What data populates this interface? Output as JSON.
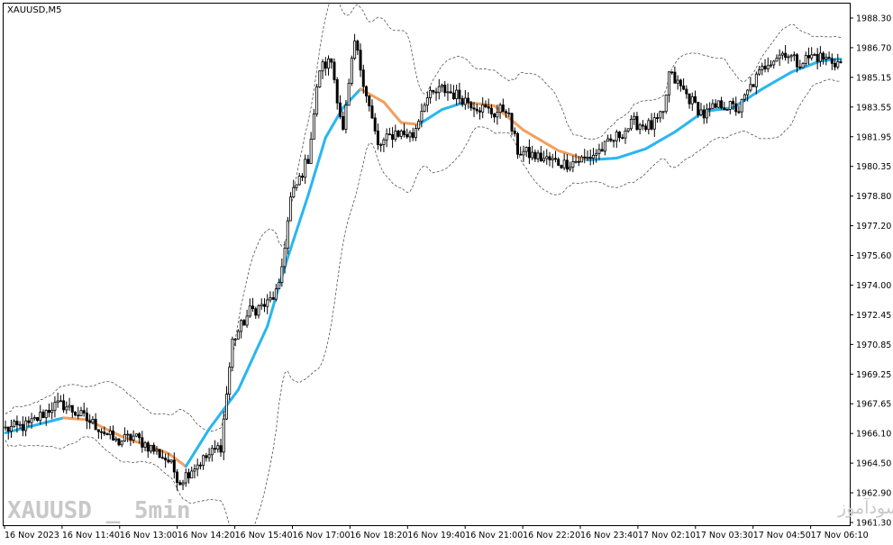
{
  "chart_data": {
    "type": "candlestick",
    "symbol": "XAUUSD,M5",
    "y_ticks": [
      "1988.30",
      "1986.70",
      "1985.15",
      "1983.55",
      "1981.95",
      "1980.35",
      "1978.80",
      "1977.20",
      "1975.60",
      "1974.00",
      "1972.45",
      "1970.85",
      "1969.25",
      "1967.65",
      "1966.10",
      "1964.50",
      "1962.90",
      "1961.30"
    ],
    "x_ticks": [
      "16 Nov 2023",
      "16 Nov 11:40",
      "16 Nov 13:00",
      "16 Nov 14:20",
      "16 Nov 15:40",
      "16 Nov 17:00",
      "16 Nov 18:20",
      "16 Nov 19:40",
      "16 Nov 21:00",
      "16 Nov 22:20",
      "16 Nov 23:40",
      "17 Nov 02:10",
      "17 Nov 03:30",
      "17 Nov 04:50",
      "17 Nov 06:10"
    ],
    "ylim": [
      1961.3,
      1988.3
    ],
    "ma_colors": {
      "up": "#29b6f0",
      "down": "#f0a060"
    },
    "band_color": "#555555",
    "candle_color": "#000000",
    "anchors": [
      [
        0,
        1966.3
      ],
      [
        8,
        1966.5
      ],
      [
        16,
        1967.5
      ],
      [
        20,
        1967.6
      ],
      [
        26,
        1967.0
      ],
      [
        32,
        1966.4
      ],
      [
        38,
        1965.6
      ],
      [
        44,
        1965.9
      ],
      [
        50,
        1965.3
      ],
      [
        56,
        1964.6
      ],
      [
        60,
        1963.5
      ],
      [
        64,
        1964.2
      ],
      [
        70,
        1964.9
      ],
      [
        74,
        1965.4
      ],
      [
        78,
        1971.0
      ],
      [
        84,
        1972.6
      ],
      [
        90,
        1973.0
      ],
      [
        94,
        1973.8
      ],
      [
        98,
        1978.6
      ],
      [
        104,
        1980.8
      ],
      [
        108,
        1985.6
      ],
      [
        112,
        1986.0
      ],
      [
        116,
        1982.2
      ],
      [
        120,
        1987.0
      ],
      [
        124,
        1984.3
      ],
      [
        128,
        1981.4
      ],
      [
        134,
        1982.2
      ],
      [
        140,
        1982.0
      ],
      [
        144,
        1983.9
      ],
      [
        150,
        1984.5
      ],
      [
        156,
        1984.1
      ],
      [
        162,
        1983.6
      ],
      [
        168,
        1983.2
      ],
      [
        172,
        1983.5
      ],
      [
        176,
        1981.2
      ],
      [
        184,
        1980.8
      ],
      [
        192,
        1980.5
      ],
      [
        200,
        1980.8
      ],
      [
        206,
        1981.4
      ],
      [
        212,
        1982.2
      ],
      [
        216,
        1982.7
      ],
      [
        222,
        1982.5
      ],
      [
        226,
        1983.1
      ],
      [
        228,
        1985.3
      ],
      [
        232,
        1984.6
      ],
      [
        236,
        1983.8
      ],
      [
        240,
        1983.1
      ],
      [
        246,
        1983.7
      ],
      [
        252,
        1983.4
      ],
      [
        256,
        1984.6
      ],
      [
        262,
        1986.0
      ],
      [
        268,
        1986.5
      ],
      [
        272,
        1985.9
      ],
      [
        278,
        1986.3
      ],
      [
        282,
        1986.1
      ],
      [
        286,
        1985.9
      ]
    ],
    "ma_anchors": [
      [
        0,
        1966.1
      ],
      [
        20,
        1966.9
      ],
      [
        28,
        1966.8
      ],
      [
        40,
        1965.9
      ],
      [
        56,
        1965.0
      ],
      [
        62,
        1964.3
      ],
      [
        70,
        1966.3
      ],
      [
        80,
        1968.4
      ],
      [
        90,
        1971.8
      ],
      [
        96,
        1975.0
      ],
      [
        104,
        1978.8
      ],
      [
        110,
        1981.9
      ],
      [
        116,
        1983.5
      ],
      [
        122,
        1984.5
      ],
      [
        130,
        1983.8
      ],
      [
        136,
        1982.7
      ],
      [
        142,
        1982.6
      ],
      [
        150,
        1983.4
      ],
      [
        158,
        1983.8
      ],
      [
        168,
        1983.6
      ],
      [
        178,
        1982.3
      ],
      [
        190,
        1981.2
      ],
      [
        200,
        1980.7
      ],
      [
        210,
        1980.8
      ],
      [
        220,
        1981.3
      ],
      [
        230,
        1982.2
      ],
      [
        240,
        1983.3
      ],
      [
        250,
        1983.5
      ],
      [
        260,
        1984.5
      ],
      [
        270,
        1985.4
      ],
      [
        280,
        1986.0
      ],
      [
        286,
        1986.1
      ]
    ]
  },
  "watermark": {
    "left": "XAUUSD _ 5min",
    "right": "انتشار در سایت سودآموز"
  }
}
